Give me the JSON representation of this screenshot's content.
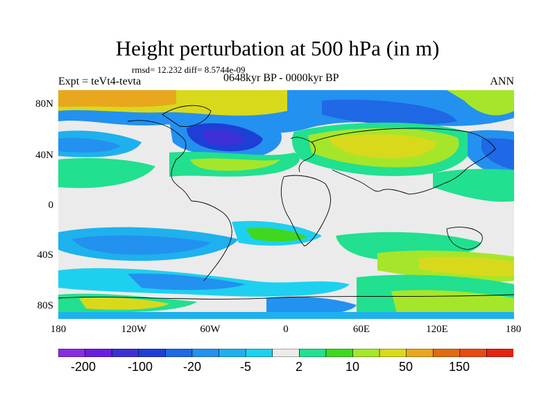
{
  "title": "Height perturbation at 500 hPa (in m)",
  "stats": "rmsd= 12.232 diff= 8.5744e-09",
  "expt": "Expt = teVt4-tevta",
  "period": "0648kyr BP - 0000kyr BP",
  "season": "ANN",
  "lat_labels": [
    "80N",
    "40N",
    "0",
    "40S",
    "80S"
  ],
  "lon_labels": [
    "180",
    "120W",
    "60W",
    "0",
    "60E",
    "120E",
    "180"
  ],
  "colorbar": {
    "colors": [
      "#8a2be2",
      "#6a1ee0",
      "#3c2fd8",
      "#1d3fd6",
      "#1f68e6",
      "#2391ef",
      "#1eb1ee",
      "#1ed0ef",
      "#ebebeb",
      "#21e08f",
      "#3fd81f",
      "#a6e62a",
      "#d9d91c",
      "#e8a71d",
      "#e06b13",
      "#e84a14",
      "#e62312"
    ],
    "labels": [
      "-200",
      "-100",
      "-20",
      "-5",
      "2",
      "10",
      "50",
      "150"
    ]
  }
}
